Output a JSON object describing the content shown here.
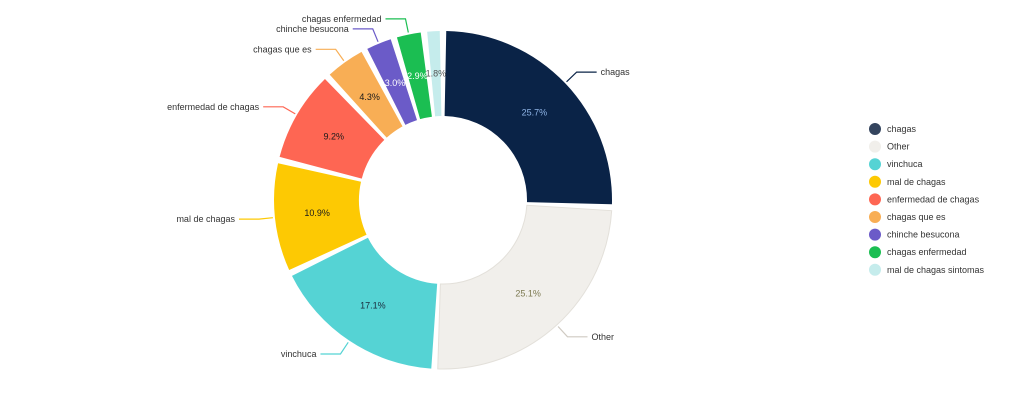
{
  "chart_data": {
    "type": "pie",
    "variant": "donut",
    "title": "",
    "slices": [
      {
        "label": "chagas",
        "value": 25.7,
        "display": "25.7%",
        "color": "#0a2347",
        "legend_color": "#34445e",
        "text_color": "#8fb4e6"
      },
      {
        "label": "Other",
        "value": 25.1,
        "display": "25.1%",
        "color": "#f1efeb",
        "legend_color": "#f1efeb",
        "text_color": "#7d7a52"
      },
      {
        "label": "vinchuca",
        "value": 17.1,
        "display": "17.1%",
        "color": "#55d3d4",
        "legend_color": "#55d3d4",
        "text_color": "#1a2b3c"
      },
      {
        "label": "mal de chagas",
        "value": 10.9,
        "display": "10.9%",
        "color": "#fdc903",
        "legend_color": "#fdc903",
        "text_color": "#1a1a1a"
      },
      {
        "label": "enfermedad de chagas",
        "value": 9.2,
        "display": "9.2%",
        "color": "#fe6653",
        "legend_color": "#fe6653",
        "text_color": "#1a1a1a"
      },
      {
        "label": "chagas que es",
        "value": 4.3,
        "display": "4.3%",
        "color": "#f8ae55",
        "legend_color": "#f8ae55",
        "text_color": "#1a1a1a"
      },
      {
        "label": "chinche besucona",
        "value": 3.0,
        "display": "3.0%",
        "color": "#6b5bc8",
        "legend_color": "#6b5bc8",
        "text_color": "#ffffff"
      },
      {
        "label": "chagas enfermedad",
        "value": 2.9,
        "display": "2.9%",
        "color": "#1bbe52",
        "legend_color": "#1bbe52",
        "text_color": "#ffffff"
      },
      {
        "label": "mal de chagas sintomas",
        "value": 1.8,
        "display": "1.8%",
        "color": "#c5ecec",
        "legend_color": "#c5ecec",
        "text_color": "#555555"
      }
    ],
    "callouts": [
      {
        "slice": 0,
        "text": "chagas"
      },
      {
        "slice": 1,
        "text": "Other"
      },
      {
        "slice": 2,
        "text": "vinchuca"
      },
      {
        "slice": 3,
        "text": "mal de chagas"
      },
      {
        "slice": 4,
        "text": "enfermedad de chagas"
      },
      {
        "slice": 5,
        "text": "chagas que es"
      },
      {
        "slice": 6,
        "text": "chinche besucona"
      },
      {
        "slice": 7,
        "text": "chagas enfermedad"
      }
    ],
    "legend": {
      "position": "right",
      "items": [
        "chagas",
        "Other",
        "vinchuca",
        "mal de chagas",
        "enfermedad de chagas",
        "chagas que es",
        "chinche besucona",
        "chagas enfermedad",
        "mal de chagas sintomas"
      ]
    }
  }
}
